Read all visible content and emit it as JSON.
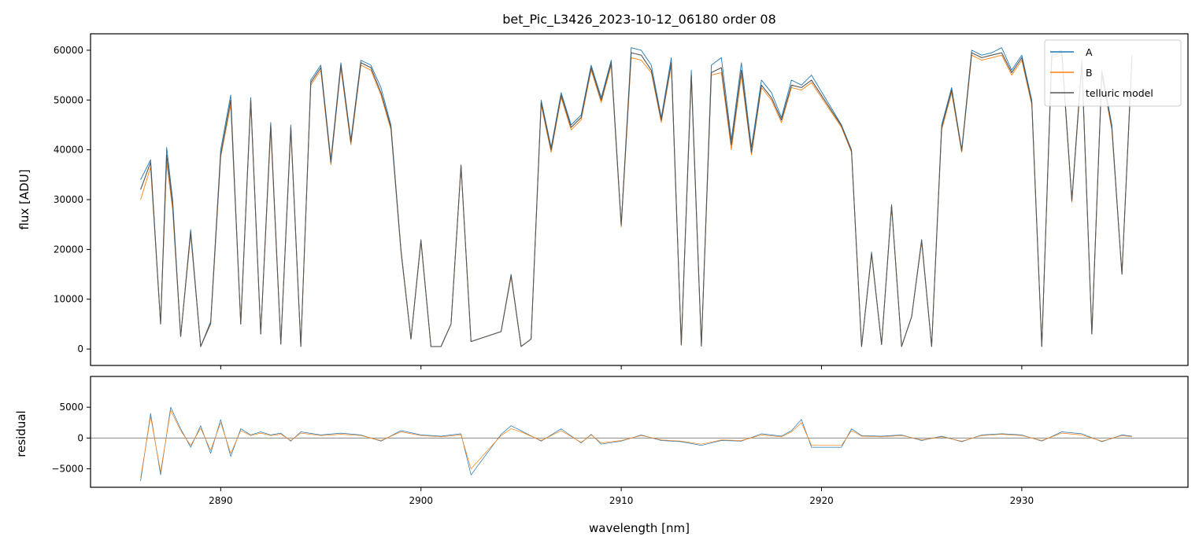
{
  "chart_data": [
    {
      "type": "line",
      "title": "bet_Pic_L3426_2023-10-12_06180  order 08",
      "xlabel": "",
      "ylabel": "flux [ADU]",
      "xlim": [
        2883.5,
        2938.3
      ],
      "ylim": [
        -3300,
        63300
      ],
      "yticks": [
        0,
        10000,
        20000,
        30000,
        40000,
        50000,
        60000
      ],
      "ytick_labels": [
        "0",
        "10000",
        "20000",
        "30000",
        "40000",
        "50000",
        "60000"
      ],
      "xticks": [
        2890,
        2900,
        2910,
        2920,
        2930
      ],
      "grid": false,
      "legend_position": "top-right",
      "series": [
        {
          "name": "A",
          "color": "#1f77b4",
          "x": [
            2886.0,
            2886.5,
            2887.0,
            2887.3,
            2887.6,
            2888.0,
            2888.5,
            2889.0,
            2889.5,
            2890.0,
            2890.5,
            2891.0,
            2891.5,
            2892.0,
            2892.5,
            2893.0,
            2893.5,
            2894.0,
            2894.5,
            2895.0,
            2895.5,
            2896.0,
            2896.5,
            2897.0,
            2897.5,
            2898.0,
            2898.5,
            2899.0,
            2899.5,
            2900.0,
            2900.5,
            2901.0,
            2901.5,
            2902.0,
            2902.5,
            2904.0,
            2904.5,
            2905.0,
            2905.5,
            2906.0,
            2906.5,
            2907.0,
            2907.5,
            2908.0,
            2908.5,
            2909.0,
            2909.5,
            2910.0,
            2910.5,
            2911.0,
            2911.5,
            2912.0,
            2912.5,
            2913.0,
            2913.5,
            2914.0,
            2914.5,
            2915.0,
            2915.5,
            2916.0,
            2916.5,
            2917.0,
            2917.5,
            2918.0,
            2918.5,
            2919.0,
            2919.5,
            2921.0,
            2921.5,
            2922.0,
            2922.5,
            2923.0,
            2923.5,
            2924.0,
            2924.5,
            2925.0,
            2925.5,
            2926.0,
            2926.5,
            2927.0,
            2927.5,
            2928.0,
            2928.5,
            2929.0,
            2929.5,
            2930.0,
            2930.5,
            2931.0,
            2931.5,
            2932.0,
            2932.5,
            2933.0,
            2933.5,
            2934.0,
            2934.5,
            2935.0,
            2935.5
          ],
          "y": [
            34000,
            38000,
            5000,
            40500,
            30000,
            2500,
            24000,
            500,
            5500,
            40000,
            51000,
            5000,
            50500,
            3000,
            45500,
            1000,
            45000,
            500,
            54000,
            57000,
            38000,
            57500,
            42000,
            58000,
            57000,
            52500,
            45000,
            20000,
            2000,
            22000,
            500,
            500,
            5000,
            37000,
            1500,
            3500,
            15000,
            500,
            2000,
            50000,
            40500,
            51500,
            45000,
            47000,
            57000,
            50500,
            58000,
            25000,
            60500,
            60000,
            57000,
            46500,
            58500,
            800,
            56000,
            600,
            57000,
            58500,
            42000,
            57500,
            40500,
            54000,
            51500,
            46500,
            54000,
            53000,
            55000,
            45000,
            40000,
            500,
            19500,
            900,
            29000,
            500,
            6500,
            22000,
            500,
            45000,
            52500,
            40000,
            60000,
            59000,
            59500,
            60500,
            56000,
            59000,
            50000,
            500,
            59500,
            60000,
            30000,
            58000,
            3000,
            56000,
            45000,
            15000,
            59000
          ]
        },
        {
          "name": "B",
          "color": "#ff7f0e",
          "x": [
            2886.0,
            2886.5,
            2887.0,
            2887.3,
            2887.6,
            2888.0,
            2888.5,
            2889.0,
            2889.5,
            2890.0,
            2890.5,
            2891.0,
            2891.5,
            2892.0,
            2892.5,
            2893.0,
            2893.5,
            2894.0,
            2894.5,
            2895.0,
            2895.5,
            2896.0,
            2896.5,
            2897.0,
            2897.5,
            2898.0,
            2898.5,
            2899.0,
            2899.5,
            2900.0,
            2900.5,
            2901.0,
            2901.5,
            2902.0,
            2902.5,
            2904.0,
            2904.5,
            2905.0,
            2905.5,
            2906.0,
            2906.5,
            2907.0,
            2907.5,
            2908.0,
            2908.5,
            2909.0,
            2909.5,
            2910.0,
            2910.5,
            2911.0,
            2911.5,
            2912.0,
            2912.5,
            2913.0,
            2913.5,
            2914.0,
            2914.5,
            2915.0,
            2915.5,
            2916.0,
            2916.5,
            2917.0,
            2917.5,
            2918.0,
            2918.5,
            2919.0,
            2919.5,
            2921.0,
            2921.5,
            2922.0,
            2922.5,
            2923.0,
            2923.5,
            2924.0,
            2924.5,
            2925.0,
            2925.5,
            2926.0,
            2926.5,
            2927.0,
            2927.5,
            2928.0,
            2928.5,
            2929.0,
            2929.5,
            2930.0,
            2930.5,
            2931.0,
            2931.5,
            2932.0,
            2932.5,
            2933.0,
            2933.5,
            2934.0,
            2934.5,
            2935.0,
            2935.5
          ],
          "y": [
            30000,
            36500,
            5000,
            37500,
            28000,
            2500,
            23000,
            500,
            5000,
            38500,
            49000,
            5000,
            49500,
            3000,
            44000,
            1000,
            44000,
            500,
            53000,
            56000,
            37000,
            56500,
            41000,
            57000,
            56000,
            51000,
            44000,
            19500,
            2000,
            21500,
            500,
            500,
            5000,
            36500,
            1500,
            3500,
            14500,
            500,
            2000,
            49000,
            39500,
            50500,
            44000,
            46000,
            56000,
            49500,
            57000,
            24500,
            58500,
            58000,
            55500,
            45500,
            57000,
            800,
            54500,
            600,
            55000,
            55500,
            40000,
            55000,
            39000,
            52500,
            50000,
            45500,
            52500,
            52000,
            53500,
            44500,
            39500,
            500,
            19000,
            900,
            28500,
            500,
            6500,
            21500,
            500,
            44000,
            51500,
            39500,
            59000,
            58000,
            58500,
            59000,
            55000,
            58000,
            49000,
            500,
            58500,
            59000,
            29500,
            57000,
            3000,
            55000,
            44000,
            15000,
            58000
          ]
        },
        {
          "name": "telluric model",
          "color": "#555555",
          "x": [
            2886.0,
            2886.5,
            2887.0,
            2887.3,
            2887.6,
            2888.0,
            2888.5,
            2889.0,
            2889.5,
            2890.0,
            2890.5,
            2891.0,
            2891.5,
            2892.0,
            2892.5,
            2893.0,
            2893.5,
            2894.0,
            2894.5,
            2895.0,
            2895.5,
            2896.0,
            2896.5,
            2897.0,
            2897.5,
            2898.0,
            2898.5,
            2899.0,
            2899.5,
            2900.0,
            2900.5,
            2901.0,
            2901.5,
            2902.0,
            2902.5,
            2904.0,
            2904.5,
            2905.0,
            2905.5,
            2906.0,
            2906.5,
            2907.0,
            2907.5,
            2908.0,
            2908.5,
            2909.0,
            2909.5,
            2910.0,
            2910.5,
            2911.0,
            2911.5,
            2912.0,
            2912.5,
            2913.0,
            2913.5,
            2914.0,
            2914.5,
            2915.0,
            2915.5,
            2916.0,
            2916.5,
            2917.0,
            2917.5,
            2918.0,
            2918.5,
            2919.0,
            2919.5,
            2921.0,
            2921.5,
            2922.0,
            2922.5,
            2923.0,
            2923.5,
            2924.0,
            2924.5,
            2925.0,
            2925.5,
            2926.0,
            2926.5,
            2927.0,
            2927.5,
            2928.0,
            2928.5,
            2929.0,
            2929.5,
            2930.0,
            2930.5,
            2931.0,
            2931.5,
            2932.0,
            2932.5,
            2933.0,
            2933.5,
            2934.0,
            2934.5,
            2935.0,
            2935.5
          ],
          "y": [
            32000,
            37500,
            5000,
            39000,
            29000,
            2500,
            23500,
            500,
            5200,
            39000,
            50000,
            5000,
            50000,
            3000,
            45000,
            1000,
            44500,
            500,
            53500,
            56500,
            37500,
            57000,
            41500,
            57500,
            56500,
            51500,
            44500,
            19800,
            2000,
            21800,
            500,
            500,
            5000,
            36800,
            1500,
            3500,
            14800,
            500,
            2000,
            49500,
            40000,
            51000,
            44500,
            46500,
            56500,
            50000,
            57500,
            24800,
            59500,
            59000,
            56000,
            46000,
            57500,
            800,
            55000,
            600,
            55500,
            56500,
            41000,
            56000,
            39500,
            53000,
            50500,
            46000,
            53000,
            52500,
            54000,
            44800,
            39800,
            500,
            19200,
            900,
            28800,
            500,
            6500,
            21800,
            500,
            44500,
            52000,
            39800,
            59500,
            58500,
            59000,
            59500,
            55500,
            58500,
            49500,
            500,
            59000,
            59500,
            29800,
            57500,
            3000,
            55500,
            44500,
            15000,
            58500
          ]
        }
      ]
    },
    {
      "type": "line",
      "title": "",
      "xlabel": "wavelength [nm]",
      "ylabel": "residual",
      "xlim": [
        2883.5,
        2938.3
      ],
      "ylim": [
        -8000,
        10000
      ],
      "yticks": [
        -5000,
        0,
        5000
      ],
      "ytick_labels": [
        "−5000",
        "0",
        "5000"
      ],
      "xticks": [
        2890,
        2900,
        2910,
        2920,
        2930
      ],
      "xtick_labels": [
        "2890",
        "2900",
        "2910",
        "2920",
        "2930"
      ],
      "zero_line": 0,
      "grid": false,
      "series": [
        {
          "name": "A",
          "color": "#1f77b4",
          "x": [
            2886.0,
            2886.5,
            2887.0,
            2887.5,
            2888.0,
            2888.5,
            2889.0,
            2889.5,
            2890.0,
            2890.5,
            2891.0,
            2891.5,
            2892.0,
            2892.5,
            2893.0,
            2893.5,
            2894.0,
            2895.0,
            2896.0,
            2897.0,
            2898.0,
            2899.0,
            2900.0,
            2901.0,
            2902.0,
            2902.5,
            2904.0,
            2904.5,
            2905.0,
            2906.0,
            2907.0,
            2908.0,
            2908.5,
            2909.0,
            2910.0,
            2911.0,
            2912.0,
            2913.0,
            2914.0,
            2915.0,
            2916.0,
            2917.0,
            2918.0,
            2918.5,
            2919.0,
            2919.5,
            2921.0,
            2921.5,
            2922.0,
            2923.0,
            2924.0,
            2925.0,
            2926.0,
            2927.0,
            2928.0,
            2929.0,
            2930.0,
            2931.0,
            2932.0,
            2933.0,
            2934.0,
            2935.0,
            2935.5
          ],
          "y": [
            -7000,
            4000,
            -6000,
            5000,
            1500,
            -1500,
            2000,
            -2500,
            3000,
            -3000,
            1500,
            500,
            1000,
            500,
            800,
            -500,
            1000,
            500,
            800,
            500,
            -500,
            1200,
            500,
            300,
            700,
            -6000,
            600,
            2000,
            1200,
            -500,
            1500,
            -800,
            600,
            -1000,
            -500,
            500,
            -400,
            -600,
            -1200,
            -400,
            -500,
            700,
            300,
            1200,
            3000,
            -1500,
            -1500,
            1500,
            400,
            300,
            500,
            -400,
            300,
            -600,
            500,
            700,
            500,
            -500,
            1000,
            700,
            -600,
            500,
            300
          ]
        },
        {
          "name": "B",
          "color": "#ff7f0e",
          "x": [
            2886.0,
            2886.5,
            2887.0,
            2887.5,
            2888.0,
            2888.5,
            2889.0,
            2889.5,
            2890.0,
            2890.5,
            2891.0,
            2891.5,
            2892.0,
            2892.5,
            2893.0,
            2893.5,
            2894.0,
            2895.0,
            2896.0,
            2897.0,
            2898.0,
            2899.0,
            2900.0,
            2901.0,
            2902.0,
            2902.5,
            2904.0,
            2904.5,
            2905.0,
            2906.0,
            2907.0,
            2908.0,
            2908.5,
            2909.0,
            2910.0,
            2911.0,
            2912.0,
            2913.0,
            2914.0,
            2915.0,
            2916.0,
            2917.0,
            2918.0,
            2918.5,
            2919.0,
            2919.5,
            2921.0,
            2921.5,
            2922.0,
            2923.0,
            2924.0,
            2925.0,
            2926.0,
            2927.0,
            2928.0,
            2929.0,
            2930.0,
            2931.0,
            2932.0,
            2933.0,
            2934.0,
            2935.0,
            2935.5
          ],
          "y": [
            -6500,
            3500,
            -5500,
            4500,
            1200,
            -1200,
            1600,
            -2000,
            2500,
            -2500,
            1200,
            400,
            800,
            400,
            600,
            -400,
            800,
            400,
            600,
            400,
            -400,
            1000,
            400,
            200,
            500,
            -5000,
            400,
            1500,
            1000,
            -400,
            1200,
            -700,
            500,
            -800,
            -400,
            400,
            -300,
            -500,
            -1000,
            -300,
            -400,
            500,
            200,
            1000,
            2500,
            -1200,
            -1200,
            1200,
            300,
            200,
            400,
            -300,
            200,
            -500,
            400,
            600,
            400,
            -400,
            800,
            500,
            -500,
            400,
            200
          ]
        }
      ]
    }
  ]
}
